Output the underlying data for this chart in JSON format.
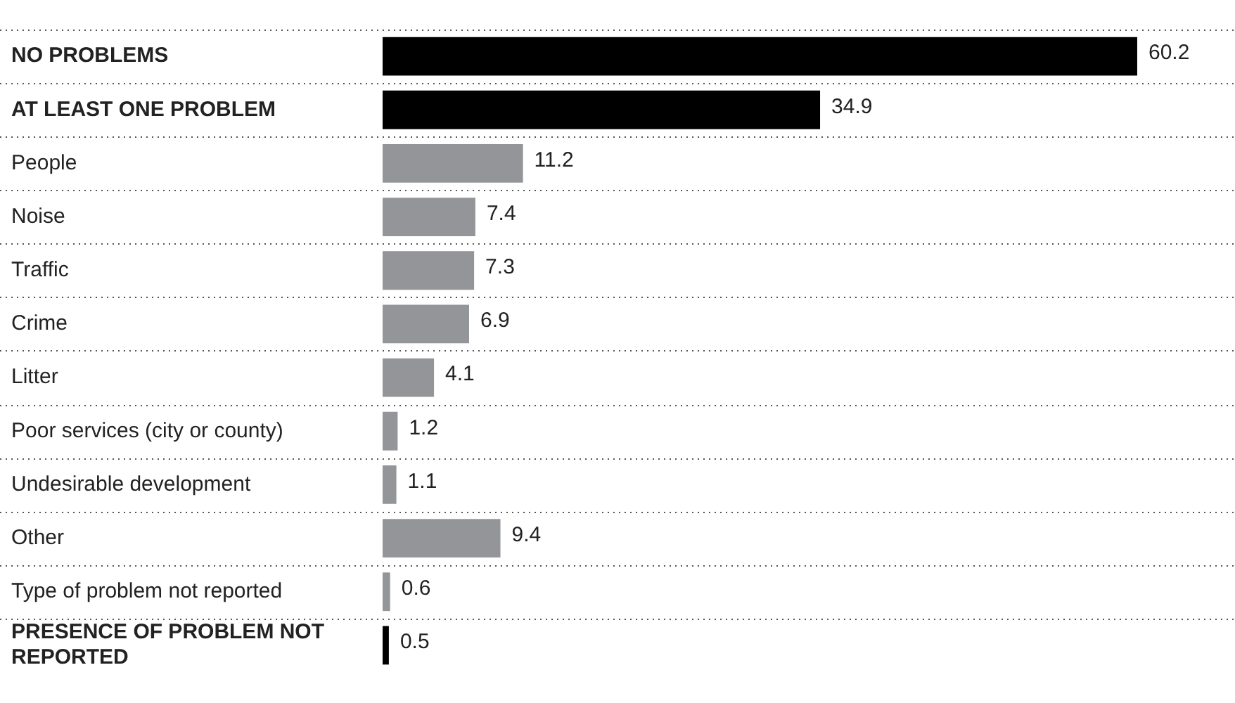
{
  "chart_data": {
    "type": "bar",
    "orientation": "horizontal",
    "categories": [
      "NO PROBLEMS",
      "AT LEAST ONE PROBLEM",
      "People",
      "Noise",
      "Traffic",
      "Crime",
      "Litter",
      "Poor services (city or county)",
      "Undesirable development",
      "Other",
      "Type of problem not reported",
      "PRESENCE OF PROBLEM NOT REPORTED"
    ],
    "values": [
      60.2,
      34.9,
      11.2,
      7.4,
      7.3,
      6.9,
      4.1,
      1.2,
      1.1,
      9.4,
      0.6,
      0.5
    ],
    "colors": [
      "#000000",
      "#000000",
      "#939598",
      "#939598",
      "#939598",
      "#939598",
      "#939598",
      "#939598",
      "#939598",
      "#939598",
      "#939598",
      "#000000"
    ],
    "xlim": [
      0,
      68
    ],
    "tick_labels": "y",
    "grid": "y",
    "data_labels": true,
    "legend": false
  }
}
